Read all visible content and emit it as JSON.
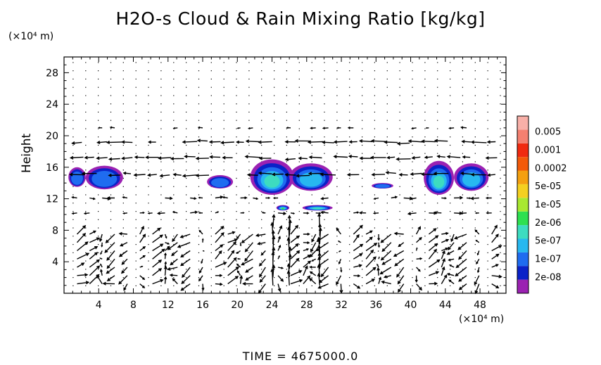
{
  "chart_data": {
    "type": "heatmap",
    "title": "H2O-s Cloud & Rain Mixing Ratio [kg/kg]",
    "ylabel": "Height",
    "x_unit": "(×10⁴ m)",
    "y_unit": "(×10⁴ m)",
    "footer": "TIME = 4675000.0",
    "xlim": [
      0,
      51
    ],
    "ylim": [
      0,
      30
    ],
    "x_ticks": [
      "4",
      "8",
      "12",
      "16",
      "20",
      "24",
      "28",
      "32",
      "36",
      "40",
      "44",
      "48"
    ],
    "y_ticks": [
      "4",
      "8",
      "12",
      "16",
      "20",
      "24",
      "28"
    ],
    "colorbar": {
      "labels": [
        "0.005",
        "0.001",
        "0.0002",
        "5e-05",
        "1e-05",
        "2e-06",
        "5e-07",
        "1e-07",
        "2e-08"
      ],
      "colors": [
        "#9b22b2",
        "#0a22c8",
        "#1f6cf0",
        "#27b8f0",
        "#3ddcc0",
        "#2ee050",
        "#a8e830",
        "#f4d020",
        "#f4a010",
        "#f35a0a",
        "#f02a10",
        "#f48070",
        "#f8b0a8"
      ]
    },
    "cloud_regions": [
      {
        "x": [
          0.5,
          2.5
        ],
        "y": [
          13.5,
          16.0
        ],
        "max_level": "5e-07"
      },
      {
        "x": [
          2.5,
          6.8
        ],
        "y": [
          13.2,
          16.2
        ],
        "max_level": "5e-07"
      },
      {
        "x": [
          16.5,
          19.5
        ],
        "y": [
          13.3,
          15.0
        ],
        "max_level": "5e-07"
      },
      {
        "x": [
          21.5,
          26.5
        ],
        "y": [
          12.5,
          17.0
        ],
        "max_level": "1e-05"
      },
      {
        "x": [
          26.0,
          31.0
        ],
        "y": [
          13.0,
          16.5
        ],
        "max_level": "2e-06"
      },
      {
        "x": [
          24.5,
          26.0
        ],
        "y": [
          10.5,
          11.2
        ],
        "max_level": "5e-05"
      },
      {
        "x": [
          27.5,
          31.0
        ],
        "y": [
          10.5,
          11.2
        ],
        "max_level": "1e-05"
      },
      {
        "x": [
          35.5,
          38.0
        ],
        "y": [
          13.3,
          14.0
        ],
        "max_level": "5e-07"
      },
      {
        "x": [
          41.5,
          45.0
        ],
        "y": [
          12.5,
          16.8
        ],
        "max_level": "1e-05"
      },
      {
        "x": [
          45.0,
          49.0
        ],
        "y": [
          13.0,
          16.5
        ],
        "max_level": "2e-06"
      }
    ]
  }
}
